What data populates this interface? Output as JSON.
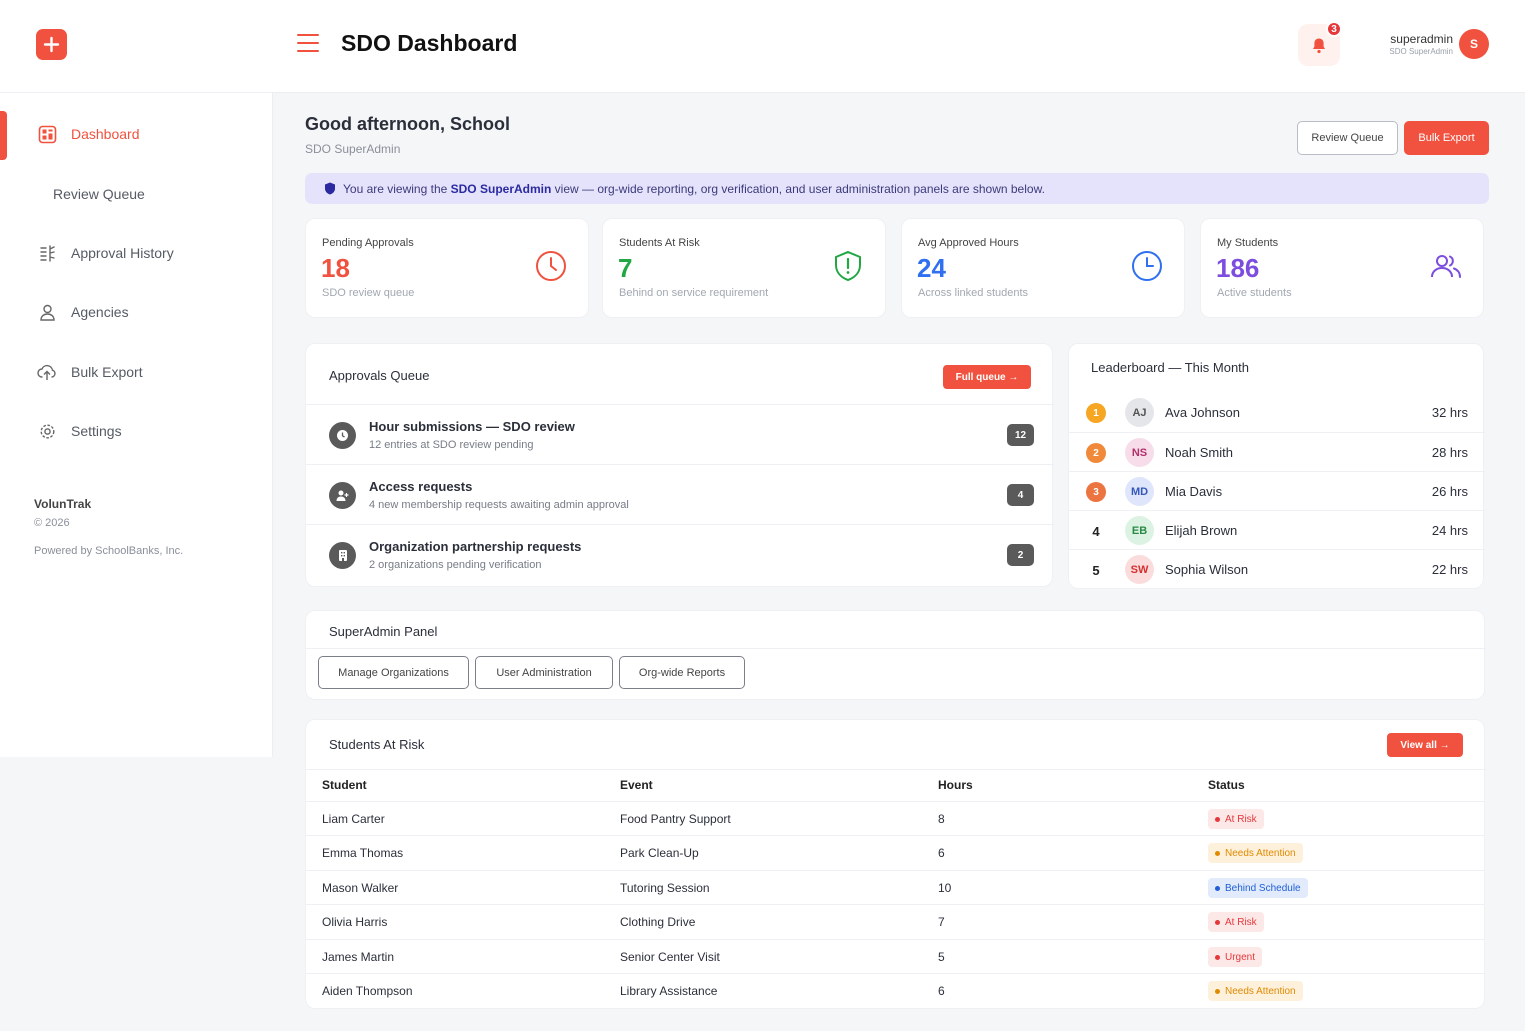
{
  "header": {
    "title": "SDO Dashboard",
    "notification_count": "3",
    "user_name": "superadmin",
    "user_role": "SDO SuperAdmin",
    "user_initial": "S"
  },
  "sidebar": {
    "items": [
      {
        "label": "Dashboard",
        "icon": "dashboard-icon",
        "active": true
      },
      {
        "label": "Review Queue",
        "icon": "",
        "active": false
      },
      {
        "label": "Approval History",
        "icon": "history-icon",
        "active": false
      },
      {
        "label": "Agencies",
        "icon": "user-icon",
        "active": false
      },
      {
        "label": "Bulk Export",
        "icon": "cloud-upload-icon",
        "active": false
      },
      {
        "label": "Settings",
        "icon": "gear-icon",
        "active": false
      }
    ],
    "brand": "VolunTrak",
    "year": "© 2026",
    "powered": "Powered by SchoolBanks, Inc."
  },
  "main": {
    "greeting": "Good afternoon, School",
    "role": "SDO SuperAdmin",
    "review_queue_label": "Review Queue",
    "bulk_export_label": "Bulk Export",
    "banner": {
      "prefix": "You are viewing the ",
      "bold": "SDO SuperAdmin",
      "suffix": " view — org-wide reporting, org verification, and user administration panels are shown below."
    }
  },
  "stats": [
    {
      "label": "Pending Approvals",
      "value": "18",
      "sub": "SDO review queue",
      "color": "#f0523f",
      "icon": "clock-icon"
    },
    {
      "label": "Students At Risk",
      "value": "7",
      "sub": "Behind on service requirement",
      "color": "#22a745",
      "icon": "shield-alert-icon"
    },
    {
      "label": "Avg Approved Hours",
      "value": "24",
      "sub": "Across linked students",
      "color": "#2f6ff0",
      "icon": "clock-icon"
    },
    {
      "label": "My Students",
      "value": "186",
      "sub": "Active students",
      "color": "#7c4dde",
      "icon": "users-icon"
    }
  ],
  "approvals": {
    "title": "Approvals Queue",
    "button": "Full queue →",
    "items": [
      {
        "title": "Hour submissions — SDO review",
        "sub": "12 entries at SDO review pending",
        "count": "12",
        "icon": "clock-icon"
      },
      {
        "title": "Access requests",
        "sub": "4 new membership requests awaiting admin approval",
        "count": "4",
        "icon": "user-add-icon"
      },
      {
        "title": "Organization partnership requests",
        "sub": "2 organizations pending verification",
        "count": "2",
        "icon": "building-icon"
      }
    ]
  },
  "leaderboard": {
    "title": "Leaderboard — This Month",
    "rows": [
      {
        "rank": "1",
        "initials": "AJ",
        "name": "Ava Johnson",
        "hours": "32 hrs"
      },
      {
        "rank": "2",
        "initials": "NS",
        "name": "Noah Smith",
        "hours": "28 hrs"
      },
      {
        "rank": "3",
        "initials": "MD",
        "name": "Mia Davis",
        "hours": "26 hrs"
      },
      {
        "rank": "4",
        "initials": "EB",
        "name": "Elijah Brown",
        "hours": "24 hrs"
      },
      {
        "rank": "5",
        "initials": "SW",
        "name": "Sophia Wilson",
        "hours": "22 hrs"
      }
    ]
  },
  "superadmin": {
    "title": "SuperAdmin Panel",
    "buttons": [
      "Manage Organizations",
      "User Administration",
      "Org-wide Reports"
    ]
  },
  "at_risk": {
    "title": "Students At Risk",
    "button": "View all →",
    "columns": [
      "Student",
      "Event",
      "Hours",
      "Status"
    ],
    "rows": [
      {
        "student": "Liam Carter",
        "event": "Food Pantry Support",
        "hours": "8",
        "status": "At Risk"
      },
      {
        "student": "Emma Thomas",
        "event": "Park Clean-Up",
        "hours": "6",
        "status": "Needs Attention"
      },
      {
        "student": "Mason Walker",
        "event": "Tutoring Session",
        "hours": "10",
        "status": "Behind Schedule"
      },
      {
        "student": "Olivia Harris",
        "event": "Clothing Drive",
        "hours": "7",
        "status": "At Risk"
      },
      {
        "student": "James Martin",
        "event": "Senior Center Visit",
        "hours": "5",
        "status": "Urgent"
      },
      {
        "student": "Aiden Thompson",
        "event": "Library Assistance",
        "hours": "6",
        "status": "Needs Attention"
      }
    ]
  },
  "colors": {
    "accent": "#f0523f",
    "at_risk": "#e5383b",
    "needs_attention": "#e08a00",
    "behind_schedule": "#1f5fd6"
  }
}
